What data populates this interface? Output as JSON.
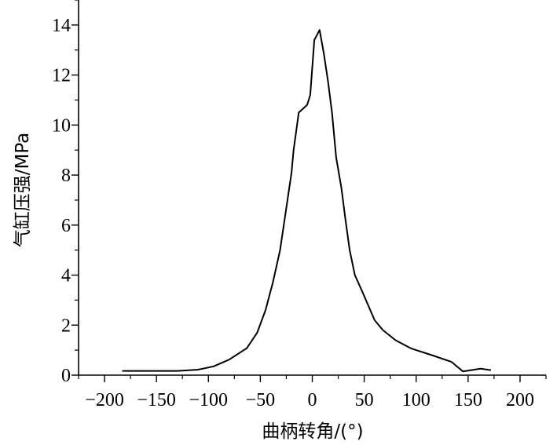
{
  "chart_data": {
    "type": "line",
    "title": "",
    "xlabel": "曲柄转角/(°)",
    "ylabel": "气缸压强/MPa",
    "xlim": [
      -225,
      225
    ],
    "ylim": [
      0,
      15
    ],
    "x_ticks": [
      -200,
      -150,
      -100,
      -50,
      0,
      50,
      100,
      150,
      200
    ],
    "x_tick_labels": [
      "−200",
      "−150",
      "−100",
      "−50",
      "0",
      "50",
      "100",
      "150",
      "200"
    ],
    "y_ticks": [
      0,
      2,
      4,
      6,
      8,
      10,
      12,
      14
    ],
    "y_tick_labels": [
      "0",
      "2",
      "4",
      "6",
      "8",
      "10",
      "12",
      "14"
    ],
    "grid": false,
    "legend": "none",
    "series": [
      {
        "color": "#000000",
        "points": [
          [
            -183,
            0.17
          ],
          [
            -160,
            0.17
          ],
          [
            -130,
            0.17
          ],
          [
            -110,
            0.22
          ],
          [
            -95,
            0.35
          ],
          [
            -80,
            0.62
          ],
          [
            -63,
            1.08
          ],
          [
            -53,
            1.7
          ],
          [
            -45,
            2.6
          ],
          [
            -38,
            3.7
          ],
          [
            -31,
            5.0
          ],
          [
            -26,
            6.4
          ],
          [
            -20,
            8.1
          ],
          [
            -18,
            9.0
          ],
          [
            -13,
            10.5
          ],
          [
            -5,
            10.8
          ],
          [
            -2,
            11.2
          ],
          [
            0,
            12.3
          ],
          [
            2,
            13.4
          ],
          [
            7,
            13.8
          ],
          [
            11,
            12.9
          ],
          [
            15,
            11.8
          ],
          [
            19,
            10.5
          ],
          [
            23,
            8.7
          ],
          [
            28,
            7.5
          ],
          [
            32,
            6.2
          ],
          [
            36,
            5.0
          ],
          [
            41,
            4.0
          ],
          [
            48,
            3.35
          ],
          [
            60,
            2.2
          ],
          [
            68,
            1.8
          ],
          [
            80,
            1.4
          ],
          [
            95,
            1.07
          ],
          [
            115,
            0.8
          ],
          [
            134,
            0.53
          ],
          [
            145,
            0.15
          ],
          [
            162,
            0.26
          ],
          [
            172,
            0.2
          ]
        ]
      }
    ]
  }
}
